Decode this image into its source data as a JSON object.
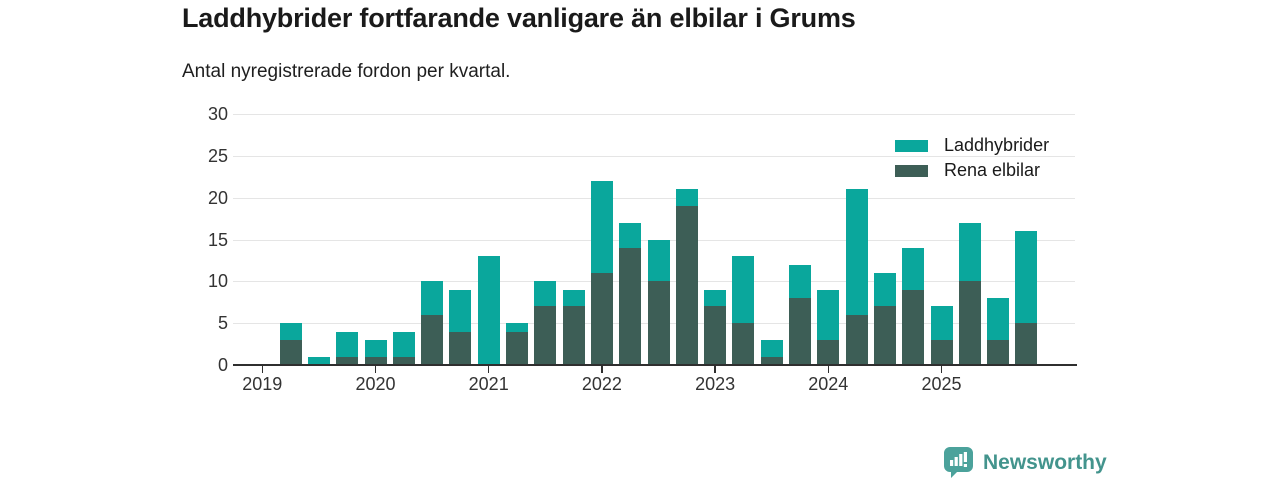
{
  "header": {
    "title": "Laddhybrider fortfarande vanligare än elbilar i Grums",
    "subtitle": "Antal nyregistrerade fordon per kvartal."
  },
  "chart_data": {
    "type": "bar",
    "stacked": true,
    "title": "Laddhybrider fortfarande vanligare än elbilar i Grums",
    "subtitle": "Antal nyregistrerade fordon per kvartal.",
    "xlabel": "",
    "ylabel": "",
    "ylim": [
      0,
      30
    ],
    "yticks": [
      0,
      5,
      10,
      15,
      20,
      25,
      30
    ],
    "grid": true,
    "legend_position": "top-right",
    "categories": [
      "2019 Q1",
      "2019 Q2",
      "2019 Q3",
      "2019 Q4",
      "2020 Q1",
      "2020 Q2",
      "2020 Q3",
      "2020 Q4",
      "2021 Q1",
      "2021 Q2",
      "2021 Q3",
      "2021 Q4",
      "2022 Q1",
      "2022 Q2",
      "2022 Q3",
      "2022 Q4",
      "2023 Q1",
      "2023 Q2",
      "2023 Q3",
      "2023 Q4",
      "2024 Q1",
      "2024 Q2",
      "2024 Q3",
      "2024 Q4",
      "2025 Q1",
      "2025 Q2",
      "2025 Q3",
      "2025 Q4"
    ],
    "series": [
      {
        "name": "Laddhybrider",
        "color": "#0aa79c",
        "stack_position": "top",
        "values": [
          0,
          2,
          1,
          3,
          2,
          3,
          4,
          5,
          13,
          1,
          3,
          2,
          11,
          3,
          5,
          2,
          2,
          8,
          2,
          4,
          6,
          15,
          4,
          5,
          4,
          7,
          5,
          11
        ]
      },
      {
        "name": "Rena elbilar",
        "color": "#3d5e56",
        "stack_position": "bottom",
        "values": [
          0,
          3,
          0,
          1,
          1,
          1,
          6,
          4,
          0,
          4,
          7,
          7,
          11,
          14,
          10,
          19,
          7,
          5,
          1,
          8,
          3,
          6,
          7,
          9,
          3,
          10,
          3,
          5
        ]
      }
    ],
    "totals": [
      0,
      5,
      1,
      4,
      3,
      4,
      10,
      9,
      13,
      5,
      10,
      9,
      22,
      17,
      15,
      21,
      9,
      13,
      3,
      12,
      9,
      21,
      11,
      14,
      7,
      17,
      8,
      16
    ],
    "xticks": [
      {
        "label": "2019",
        "category_index": 0
      },
      {
        "label": "2020",
        "category_index": 4
      },
      {
        "label": "2021",
        "category_index": 8
      },
      {
        "label": "2022",
        "category_index": 12
      },
      {
        "label": "2023",
        "category_index": 16
      },
      {
        "label": "2024",
        "category_index": 20
      },
      {
        "label": "2025",
        "category_index": 24
      }
    ]
  },
  "footer": {
    "brand": "Newsworthy",
    "brand_color": "#43948d",
    "logo_color": "#4ba29b",
    "logo_icon": "bar-chart-speech-bubble-icon"
  }
}
